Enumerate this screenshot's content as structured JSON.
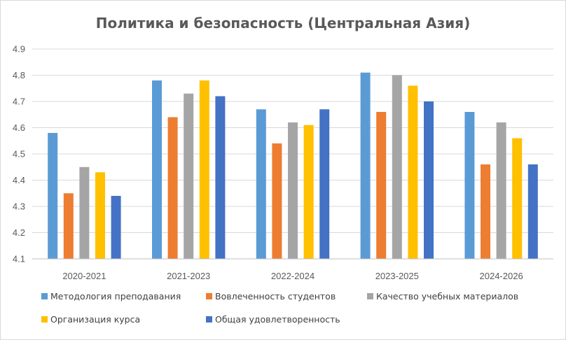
{
  "chart_data": {
    "type": "bar",
    "title": "Политика и безопасность (Центральная Азия)",
    "xlabel": "",
    "ylabel": "",
    "categories": [
      "2020-2021",
      "2021-2023",
      "2022-2024",
      "2023-2025",
      "2024-2026"
    ],
    "ylim": [
      4.1,
      4.9
    ],
    "yticks": [
      "4.1",
      "4.2",
      "4.3",
      "4.4",
      "4.5",
      "4.6",
      "4.7",
      "4.8",
      "4.9"
    ],
    "grid": true,
    "legend_position": "bottom",
    "series": [
      {
        "name": "Методология преподавания",
        "color": "#5b9bd5",
        "values": [
          4.58,
          4.78,
          4.67,
          4.81,
          4.66
        ]
      },
      {
        "name": "Вовлеченность студентов",
        "color": "#ed7d31",
        "values": [
          4.35,
          4.64,
          4.54,
          4.66,
          4.46
        ]
      },
      {
        "name": "Качество учебных материалов",
        "color": "#a5a5a5",
        "values": [
          4.45,
          4.73,
          4.62,
          4.8,
          4.62
        ]
      },
      {
        "name": "Организация курса",
        "color": "#ffc000",
        "values": [
          4.43,
          4.78,
          4.61,
          4.76,
          4.56
        ]
      },
      {
        "name": "Общая удовлетворенность",
        "color": "#4472c4",
        "values": [
          4.34,
          4.72,
          4.67,
          4.7,
          4.46
        ]
      }
    ]
  }
}
